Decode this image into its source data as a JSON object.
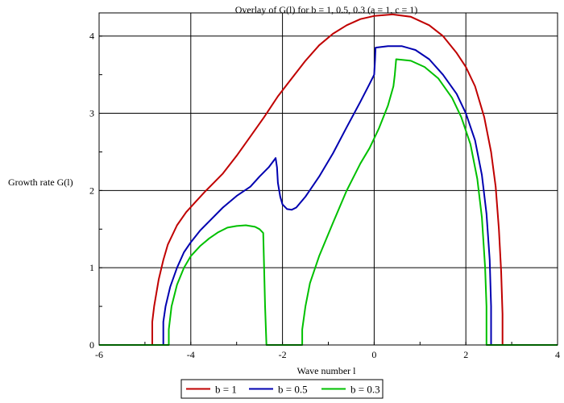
{
  "chart_data": {
    "type": "line",
    "title": "Overlay of G(l) for b = 1, 0.5, 0.3 (a = 1, c = 1)",
    "xlabel": "Wave number l",
    "ylabel": "Growth rate G(l)",
    "xlim": [
      -6,
      4
    ],
    "ylim": [
      0,
      4.3
    ],
    "xticks": [
      -6,
      -4,
      -2,
      0,
      2,
      4
    ],
    "yticks": [
      0,
      1,
      2,
      3,
      4
    ],
    "grid": true,
    "legend_position": "bottom",
    "series": [
      {
        "name": "b = 1",
        "color": "#c00000",
        "points": [
          [
            -6,
            0
          ],
          [
            -4.84,
            0
          ],
          [
            -4.84,
            0.3
          ],
          [
            -4.8,
            0.5
          ],
          [
            -4.7,
            0.85
          ],
          [
            -4.6,
            1.1
          ],
          [
            -4.5,
            1.3
          ],
          [
            -4.3,
            1.55
          ],
          [
            -4.1,
            1.72
          ],
          [
            -3.9,
            1.85
          ],
          [
            -3.7,
            1.98
          ],
          [
            -3.5,
            2.1
          ],
          [
            -3.3,
            2.22
          ],
          [
            -3.0,
            2.45
          ],
          [
            -2.7,
            2.7
          ],
          [
            -2.4,
            2.95
          ],
          [
            -2.1,
            3.22
          ],
          [
            -1.8,
            3.45
          ],
          [
            -1.5,
            3.68
          ],
          [
            -1.2,
            3.88
          ],
          [
            -0.9,
            4.03
          ],
          [
            -0.6,
            4.14
          ],
          [
            -0.3,
            4.22
          ],
          [
            0,
            4.26
          ],
          [
            0.4,
            4.28
          ],
          [
            0.8,
            4.25
          ],
          [
            1.2,
            4.14
          ],
          [
            1.5,
            4.0
          ],
          [
            1.8,
            3.78
          ],
          [
            2.0,
            3.6
          ],
          [
            2.2,
            3.35
          ],
          [
            2.4,
            2.95
          ],
          [
            2.55,
            2.5
          ],
          [
            2.65,
            2.05
          ],
          [
            2.72,
            1.5
          ],
          [
            2.77,
            0.95
          ],
          [
            2.8,
            0.4
          ],
          [
            2.8,
            0
          ],
          [
            4,
            0
          ]
        ]
      },
      {
        "name": "b = 0.5",
        "color": "#0000b0",
        "points": [
          [
            -6,
            0
          ],
          [
            -4.6,
            0
          ],
          [
            -4.6,
            0.3
          ],
          [
            -4.55,
            0.5
          ],
          [
            -4.45,
            0.75
          ],
          [
            -4.3,
            1.0
          ],
          [
            -4.15,
            1.2
          ],
          [
            -4.0,
            1.33
          ],
          [
            -3.8,
            1.48
          ],
          [
            -3.6,
            1.6
          ],
          [
            -3.3,
            1.78
          ],
          [
            -3.0,
            1.93
          ],
          [
            -2.7,
            2.05
          ],
          [
            -2.5,
            2.18
          ],
          [
            -2.3,
            2.3
          ],
          [
            -2.15,
            2.42
          ],
          [
            -2.12,
            2.3
          ],
          [
            -2.1,
            2.1
          ],
          [
            -2.05,
            1.92
          ],
          [
            -2.0,
            1.82
          ],
          [
            -1.9,
            1.76
          ],
          [
            -1.8,
            1.75
          ],
          [
            -1.7,
            1.78
          ],
          [
            -1.5,
            1.92
          ],
          [
            -1.2,
            2.18
          ],
          [
            -0.9,
            2.48
          ],
          [
            -0.6,
            2.82
          ],
          [
            -0.3,
            3.15
          ],
          [
            -0.1,
            3.38
          ],
          [
            0,
            3.5
          ],
          [
            0.02,
            3.7
          ],
          [
            0.03,
            3.85
          ],
          [
            0.3,
            3.87
          ],
          [
            0.6,
            3.87
          ],
          [
            0.9,
            3.82
          ],
          [
            1.2,
            3.7
          ],
          [
            1.5,
            3.5
          ],
          [
            1.8,
            3.25
          ],
          [
            2.0,
            3.0
          ],
          [
            2.2,
            2.65
          ],
          [
            2.35,
            2.2
          ],
          [
            2.45,
            1.7
          ],
          [
            2.52,
            1.1
          ],
          [
            2.55,
            0.5
          ],
          [
            2.55,
            0
          ],
          [
            4,
            0
          ]
        ]
      },
      {
        "name": "b = 0.3",
        "color": "#00c000",
        "points": [
          [
            -6,
            0
          ],
          [
            -4.48,
            0
          ],
          [
            -4.48,
            0.2
          ],
          [
            -4.42,
            0.5
          ],
          [
            -4.3,
            0.78
          ],
          [
            -4.15,
            1.0
          ],
          [
            -4.0,
            1.15
          ],
          [
            -3.8,
            1.28
          ],
          [
            -3.6,
            1.38
          ],
          [
            -3.4,
            1.46
          ],
          [
            -3.2,
            1.52
          ],
          [
            -3.0,
            1.54
          ],
          [
            -2.8,
            1.55
          ],
          [
            -2.6,
            1.53
          ],
          [
            -2.5,
            1.5
          ],
          [
            -2.42,
            1.45
          ],
          [
            -2.4,
            1.0
          ],
          [
            -2.38,
            0.5
          ],
          [
            -2.35,
            0
          ],
          [
            -1.57,
            0
          ],
          [
            -1.57,
            0.2
          ],
          [
            -1.5,
            0.5
          ],
          [
            -1.4,
            0.8
          ],
          [
            -1.2,
            1.15
          ],
          [
            -0.9,
            1.58
          ],
          [
            -0.6,
            2.0
          ],
          [
            -0.3,
            2.35
          ],
          [
            -0.1,
            2.55
          ],
          [
            0.1,
            2.8
          ],
          [
            0.3,
            3.1
          ],
          [
            0.42,
            3.35
          ],
          [
            0.45,
            3.5
          ],
          [
            0.48,
            3.7
          ],
          [
            0.8,
            3.68
          ],
          [
            1.1,
            3.6
          ],
          [
            1.4,
            3.45
          ],
          [
            1.7,
            3.2
          ],
          [
            1.9,
            2.95
          ],
          [
            2.1,
            2.6
          ],
          [
            2.25,
            2.15
          ],
          [
            2.35,
            1.65
          ],
          [
            2.42,
            1.0
          ],
          [
            2.45,
            0.5
          ],
          [
            2.45,
            0
          ],
          [
            4,
            0
          ]
        ]
      }
    ]
  }
}
